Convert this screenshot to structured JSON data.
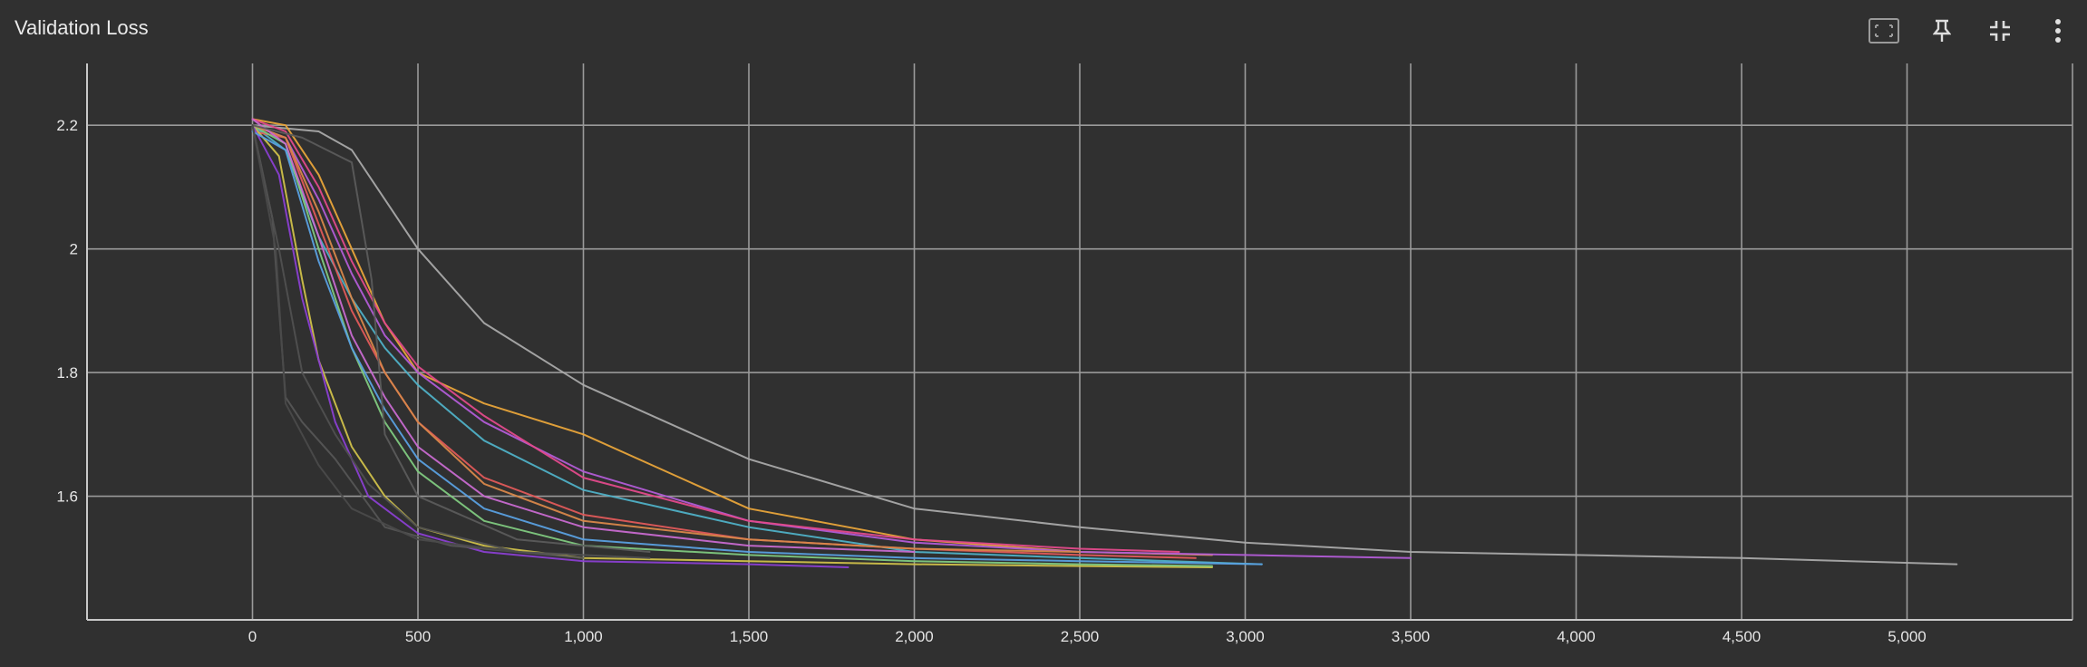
{
  "panel": {
    "title": "Validation Loss",
    "toolbar": [
      {
        "name": "fit-domain-icon"
      },
      {
        "name": "pin-icon"
      },
      {
        "name": "collapse-icon"
      },
      {
        "name": "more-vert-icon"
      }
    ]
  },
  "chart_data": {
    "type": "line",
    "title": "Validation Loss",
    "xlabel": "",
    "ylabel": "",
    "xlim": [
      -500,
      5500
    ],
    "ylim": [
      1.4,
      2.3
    ],
    "grid": true,
    "x_ticks": [
      0,
      500,
      1000,
      1500,
      2000,
      2500,
      3000,
      3500,
      4000,
      4500,
      5000
    ],
    "x_tick_labels": [
      "0",
      "500",
      "1,000",
      "1,500",
      "2,000",
      "2,500",
      "3,000",
      "3,500",
      "4,000",
      "4,500",
      "5,000"
    ],
    "y_ticks": [
      1.6,
      1.8,
      2.0,
      2.2
    ],
    "y_tick_labels": [
      "1.6",
      "1.8",
      "2",
      "2.2"
    ],
    "series": [
      {
        "color": "#a9a9a9",
        "x": [
          0,
          200,
          300,
          400,
          500,
          700,
          1000,
          1500,
          2000,
          2500,
          3000,
          3500,
          4000,
          4500,
          5150
        ],
        "y": [
          2.2,
          2.19,
          2.16,
          2.08,
          2.0,
          1.88,
          1.78,
          1.66,
          1.58,
          1.55,
          1.525,
          1.51,
          1.505,
          1.5,
          1.49
        ]
      },
      {
        "color": "#e8a43a",
        "x": [
          0,
          100,
          200,
          300,
          400,
          500,
          700,
          1000,
          1500,
          2000,
          2500,
          2900
        ],
        "y": [
          2.21,
          2.2,
          2.12,
          2.0,
          1.88,
          1.8,
          1.75,
          1.7,
          1.58,
          1.53,
          1.51,
          1.505
        ]
      },
      {
        "color": "#b25cd6",
        "x": [
          0,
          100,
          200,
          300,
          400,
          500,
          700,
          1000,
          1500,
          2000,
          2500,
          3000,
          3500
        ],
        "y": [
          2.2,
          2.18,
          2.08,
          1.96,
          1.86,
          1.8,
          1.72,
          1.64,
          1.56,
          1.525,
          1.51,
          1.505,
          1.5
        ]
      },
      {
        "color": "#e24a8b",
        "x": [
          0,
          100,
          200,
          300,
          400,
          500,
          700,
          1000,
          1500,
          2000,
          2500,
          2800
        ],
        "y": [
          2.21,
          2.19,
          2.1,
          1.98,
          1.88,
          1.81,
          1.73,
          1.63,
          1.56,
          1.53,
          1.515,
          1.51
        ]
      },
      {
        "color": "#4fb0c6",
        "x": [
          0,
          100,
          200,
          300,
          400,
          500,
          700,
          1000,
          1500,
          2000,
          2500,
          3050
        ],
        "y": [
          2.2,
          2.16,
          2.02,
          1.92,
          1.84,
          1.78,
          1.69,
          1.61,
          1.55,
          1.51,
          1.5,
          1.49
        ]
      },
      {
        "color": "#e05a5a",
        "x": [
          0,
          100,
          200,
          300,
          400,
          500,
          700,
          1000,
          1500,
          2000,
          2500,
          2850
        ],
        "y": [
          2.19,
          2.18,
          2.04,
          1.9,
          1.8,
          1.72,
          1.63,
          1.57,
          1.53,
          1.515,
          1.505,
          1.5
        ]
      },
      {
        "color": "#cfc04a",
        "x": [
          0,
          80,
          150,
          200,
          300,
          400,
          500,
          700,
          1000,
          1500,
          2000,
          2500,
          2900
        ],
        "y": [
          2.2,
          2.15,
          1.95,
          1.82,
          1.68,
          1.6,
          1.55,
          1.52,
          1.5,
          1.495,
          1.49,
          1.487,
          1.485
        ]
      },
      {
        "color": "#8a3fd1",
        "x": [
          0,
          80,
          150,
          250,
          350,
          500,
          700,
          1000,
          1500,
          1800
        ],
        "y": [
          2.2,
          2.12,
          1.92,
          1.72,
          1.6,
          1.54,
          1.51,
          1.495,
          1.49,
          1.485
        ]
      },
      {
        "color": "#7fc97f",
        "x": [
          0,
          100,
          200,
          300,
          400,
          500,
          700,
          1000,
          1500,
          2000,
          2500,
          2900
        ],
        "y": [
          2.2,
          2.17,
          2.0,
          1.84,
          1.72,
          1.64,
          1.56,
          1.52,
          1.505,
          1.495,
          1.49,
          1.487
        ]
      },
      {
        "color": "#5aa0e0",
        "x": [
          0,
          100,
          200,
          300,
          400,
          500,
          700,
          1000,
          1500,
          2000,
          2500,
          3050
        ],
        "y": [
          2.19,
          2.16,
          1.98,
          1.84,
          1.74,
          1.66,
          1.58,
          1.53,
          1.51,
          1.5,
          1.495,
          1.49
        ]
      },
      {
        "color": "#d8874a",
        "x": [
          0,
          100,
          200,
          300,
          400,
          500,
          700,
          1000,
          1500,
          2000,
          2500
        ],
        "y": [
          2.2,
          2.18,
          2.06,
          1.92,
          1.8,
          1.72,
          1.62,
          1.56,
          1.53,
          1.515,
          1.51
        ]
      },
      {
        "color": "#c86ad0",
        "x": [
          0,
          100,
          200,
          300,
          400,
          500,
          700,
          1000,
          1500,
          2000
        ],
        "y": [
          2.21,
          2.17,
          2.02,
          1.86,
          1.76,
          1.68,
          1.6,
          1.55,
          1.52,
          1.51
        ]
      },
      {
        "color": "#555555",
        "x": [
          0,
          60,
          100,
          150,
          250,
          400,
          600,
          1000
        ],
        "y": [
          2.2,
          2.05,
          1.76,
          1.72,
          1.66,
          1.55,
          1.52,
          1.5
        ]
      },
      {
        "color": "#505050",
        "x": [
          0,
          80,
          150,
          250,
          350,
          500,
          800,
          1200
        ],
        "y": [
          2.2,
          2.0,
          1.8,
          1.7,
          1.62,
          1.55,
          1.51,
          1.5
        ]
      },
      {
        "color": "#5b5b5b",
        "x": [
          0,
          150,
          300,
          360,
          400,
          500,
          800,
          1200
        ],
        "y": [
          2.2,
          2.18,
          2.14,
          1.95,
          1.7,
          1.6,
          1.53,
          1.51
        ]
      },
      {
        "color": "#4a4a4a",
        "x": [
          0,
          70,
          100,
          200,
          300,
          500,
          800
        ],
        "y": [
          2.2,
          2.0,
          1.75,
          1.65,
          1.58,
          1.53,
          1.51
        ]
      }
    ]
  }
}
